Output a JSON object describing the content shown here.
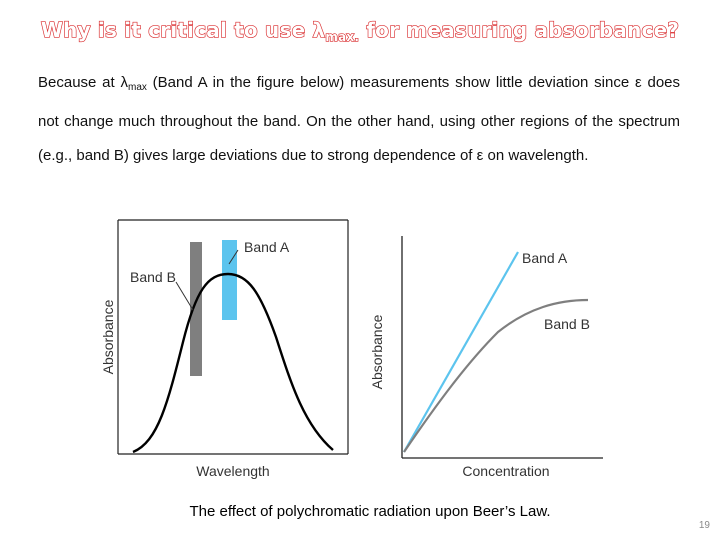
{
  "slide": {
    "title_pre": "Why is it critical to use ",
    "title_symbol": "λ",
    "title_sub": "max.",
    "title_post": " for measuring absorbance?",
    "para_pre": "Because at ",
    "para_symbol": "λ",
    "para_sub": "max",
    "para_post": " (Band A in the figure below) measurements show little deviation since ε does not change much throughout the band. On the other hand, using other regions of the spectrum (e.g., band B) gives large deviations due to strong dependence of ε on wavelength.",
    "caption": "The effect of polychromatic radiation upon Beer’s Law.",
    "page_number": "19"
  },
  "figure": {
    "left_panel": {
      "xlabel": "Wavelength",
      "ylabel": "Absorbance",
      "band_a_label": "Band A",
      "band_b_label": "Band B"
    },
    "right_panel": {
      "xlabel": "Concentration",
      "ylabel": "Absorbance",
      "line_a_label": "Band A",
      "line_b_label": "Band B"
    },
    "colors": {
      "band_a": "#5cc4ee",
      "band_b": "#7f7f7f",
      "curve": "#000000"
    }
  }
}
